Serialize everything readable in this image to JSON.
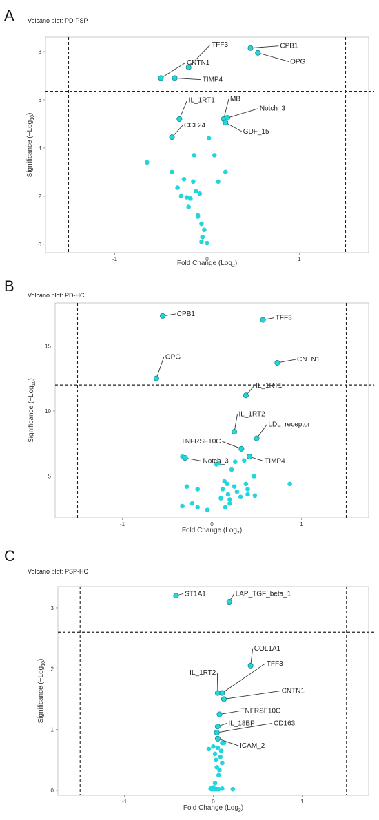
{
  "colors": {
    "point": "#22d6dc",
    "point_stroke": "#1a8f94",
    "threshold": "#222222",
    "leader": "#333333"
  },
  "chart_data": [
    {
      "panel": "A",
      "type": "scatter",
      "title": "Volcano plot: PD-PSP",
      "xlabel": "Fold Change (Log",
      "xlabel_sub": "2",
      "xlabel_suffix": ")",
      "ylabel": "Significance (−Log",
      "ylabel_sub": "10",
      "ylabel_suffix": ")",
      "xlim": [
        -1.75,
        1.75
      ],
      "ylim": [
        -0.35,
        8.6
      ],
      "xticks": [
        -1,
        0,
        1
      ],
      "xtick_labels": [
        "-1",
        "0",
        "1"
      ],
      "yticks": [
        0,
        2,
        4,
        6,
        8
      ],
      "ytick_labels": [
        "0",
        "2",
        "4",
        "6",
        "8"
      ],
      "vlines": [
        -1.5,
        1.5
      ],
      "hline": 6.35,
      "labeled_points": [
        {
          "label": "TFF3",
          "x": -0.2,
          "y": 7.35
        },
        {
          "label": "CNTN1",
          "x": -0.5,
          "y": 6.9
        },
        {
          "label": "TIMP4",
          "x": -0.35,
          "y": 6.9
        },
        {
          "label": "CPB1",
          "x": 0.47,
          "y": 8.15
        },
        {
          "label": "OPG",
          "x": 0.55,
          "y": 7.95
        },
        {
          "label": "IL_1RT1",
          "x": -0.3,
          "y": 5.2
        },
        {
          "label": "MB",
          "x": 0.18,
          "y": 5.2
        },
        {
          "label": "Notch_3",
          "x": 0.22,
          "y": 5.25
        },
        {
          "label": "GDF_15",
          "x": 0.2,
          "y": 5.05
        },
        {
          "label": "CCL24",
          "x": -0.38,
          "y": 4.45
        }
      ],
      "points": [
        {
          "x": -0.65,
          "y": 3.4
        },
        {
          "x": -0.38,
          "y": 3.0
        },
        {
          "x": -0.32,
          "y": 2.35
        },
        {
          "x": -0.25,
          "y": 2.7
        },
        {
          "x": -0.22,
          "y": 1.95
        },
        {
          "x": -0.18,
          "y": 1.9
        },
        {
          "x": -0.2,
          "y": 1.55
        },
        {
          "x": -0.15,
          "y": 2.6
        },
        {
          "x": -0.12,
          "y": 2.2
        },
        {
          "x": -0.1,
          "y": 1.15
        },
        {
          "x": -0.08,
          "y": 2.1
        },
        {
          "x": -0.06,
          "y": 0.85
        },
        {
          "x": -0.05,
          "y": 0.3
        },
        {
          "x": -0.03,
          "y": 0.6
        },
        {
          "x": 0.0,
          "y": 0.05
        },
        {
          "x": 0.02,
          "y": 4.4
        },
        {
          "x": -0.14,
          "y": 3.7
        },
        {
          "x": 0.08,
          "y": 3.7
        },
        {
          "x": 0.12,
          "y": 2.6
        },
        {
          "x": -0.1,
          "y": 1.2
        },
        {
          "x": -0.06,
          "y": 0.1
        },
        {
          "x": 0.2,
          "y": 3.0
        },
        {
          "x": -0.28,
          "y": 2.0
        }
      ],
      "label_text_pos": [
        {
          "x": 0.05,
          "y": 8.2
        },
        {
          "x": -0.22,
          "y": 7.45
        },
        {
          "x": -0.05,
          "y": 6.75
        },
        {
          "x": 0.79,
          "y": 8.15
        },
        {
          "x": 0.9,
          "y": 7.5
        },
        {
          "x": -0.2,
          "y": 5.9
        },
        {
          "x": 0.25,
          "y": 5.95
        },
        {
          "x": 0.57,
          "y": 5.55
        },
        {
          "x": 0.39,
          "y": 4.6
        },
        {
          "x": -0.25,
          "y": 4.85
        }
      ]
    },
    {
      "panel": "B",
      "type": "scatter",
      "title": "Volcano plot: PD-HC",
      "xlabel": "Fold Change (Log",
      "xlabel_sub": "2",
      "xlabel_suffix": ")",
      "ylabel": "Significance (−Log",
      "ylabel_sub": "10",
      "ylabel_suffix": ")",
      "xlim": [
        -1.75,
        1.75
      ],
      "ylim": [
        1.8,
        18.3
      ],
      "xticks": [
        -1,
        0,
        1
      ],
      "xtick_labels": [
        "-1",
        "0",
        "1"
      ],
      "yticks": [
        5,
        10,
        15
      ],
      "ytick_labels": [
        "5",
        "10",
        "15"
      ],
      "vlines": [
        -1.5,
        1.5
      ],
      "hline": 12.0,
      "labeled_points": [
        {
          "label": "CPB1",
          "x": -0.55,
          "y": 17.3
        },
        {
          "label": "TFF3",
          "x": 0.57,
          "y": 17.0
        },
        {
          "label": "CNTN1",
          "x": 0.73,
          "y": 13.7
        },
        {
          "label": "OPG",
          "x": -0.62,
          "y": 12.5
        },
        {
          "label": "IL_1RT1",
          "x": 0.38,
          "y": 11.2
        },
        {
          "label": "IL_1RT2",
          "x": 0.25,
          "y": 8.4
        },
        {
          "label": "LDL_receptor",
          "x": 0.5,
          "y": 7.9
        },
        {
          "label": "TNFRSF10C",
          "x": 0.33,
          "y": 7.1
        },
        {
          "label": "Notch_3",
          "x": -0.3,
          "y": 6.4
        },
        {
          "label": "TIMP4",
          "x": 0.42,
          "y": 6.5
        }
      ],
      "points": [
        {
          "x": -0.33,
          "y": 6.5
        },
        {
          "x": -0.28,
          "y": 4.2
        },
        {
          "x": -0.16,
          "y": 4.0
        },
        {
          "x": -0.33,
          "y": 2.7
        },
        {
          "x": -0.16,
          "y": 2.6
        },
        {
          "x": -0.05,
          "y": 2.4
        },
        {
          "x": -0.22,
          "y": 2.9
        },
        {
          "x": 0.08,
          "y": 6.0
        },
        {
          "x": 0.12,
          "y": 4.0
        },
        {
          "x": 0.17,
          "y": 4.4
        },
        {
          "x": 0.18,
          "y": 3.6
        },
        {
          "x": 0.2,
          "y": 3.2
        },
        {
          "x": 0.22,
          "y": 5.5
        },
        {
          "x": 0.25,
          "y": 4.2
        },
        {
          "x": 0.28,
          "y": 3.8
        },
        {
          "x": 0.32,
          "y": 3.4
        },
        {
          "x": 0.36,
          "y": 6.2
        },
        {
          "x": 0.4,
          "y": 4.0
        },
        {
          "x": 0.4,
          "y": 3.6
        },
        {
          "x": 0.47,
          "y": 5.0
        },
        {
          "x": 0.48,
          "y": 3.5
        },
        {
          "x": 0.2,
          "y": 2.9
        },
        {
          "x": 0.15,
          "y": 2.6
        },
        {
          "x": 0.26,
          "y": 6.1
        },
        {
          "x": 0.1,
          "y": 3.3
        },
        {
          "x": 0.87,
          "y": 4.4
        },
        {
          "x": 0.38,
          "y": 4.4
        },
        {
          "x": 0.05,
          "y": 5.9
        },
        {
          "x": 0.14,
          "y": 4.6
        }
      ],
      "label_text_pos": [
        {
          "x": -0.39,
          "y": 17.3
        },
        {
          "x": 0.71,
          "y": 17.0
        },
        {
          "x": 0.95,
          "y": 13.8
        },
        {
          "x": -0.52,
          "y": 14.0
        },
        {
          "x": 0.49,
          "y": 11.8
        },
        {
          "x": 0.3,
          "y": 9.6
        },
        {
          "x": 0.63,
          "y": 8.8
        },
        {
          "x": 0.1,
          "y": 7.5
        },
        {
          "x": -0.1,
          "y": 6.0
        },
        {
          "x": 0.59,
          "y": 6.0
        }
      ]
    },
    {
      "panel": "C",
      "type": "scatter",
      "title": "Volcano plot: PSP-HC",
      "xlabel": "Fold Change (Log",
      "xlabel_sub": "2",
      "xlabel_suffix": ")",
      "ylabel": "Significance (−Log",
      "ylabel_sub": "10",
      "ylabel_suffix": ")",
      "xlim": [
        -1.75,
        1.75
      ],
      "ylim": [
        -0.08,
        3.35
      ],
      "xticks": [
        -1,
        0,
        1
      ],
      "xtick_labels": [
        "-1",
        "0",
        "1"
      ],
      "yticks": [
        0,
        1,
        2,
        3
      ],
      "ytick_labels": [
        "0",
        "1",
        "2",
        "3"
      ],
      "vlines": [
        -1.5,
        1.5
      ],
      "hline": 2.6,
      "labeled_points": [
        {
          "label": "ST1A1",
          "x": -0.42,
          "y": 3.2
        },
        {
          "label": "LAP_TGF_beta_1",
          "x": 0.18,
          "y": 3.1
        },
        {
          "label": "COL1A1",
          "x": 0.42,
          "y": 2.05
        },
        {
          "label": "IL_1RT2",
          "x": 0.05,
          "y": 1.6
        },
        {
          "label": "TFF3",
          "x": 0.1,
          "y": 1.6
        },
        {
          "label": "CNTN1",
          "x": 0.12,
          "y": 1.5
        },
        {
          "label": "TNFRSF10C",
          "x": 0.07,
          "y": 1.25
        },
        {
          "label": "IL_18BP",
          "x": 0.05,
          "y": 1.05
        },
        {
          "label": "CD163",
          "x": 0.04,
          "y": 0.95
        },
        {
          "label": "ICAM_2",
          "x": 0.05,
          "y": 0.85
        }
      ],
      "points": [
        {
          "x": -0.05,
          "y": 0.68
        },
        {
          "x": 0.0,
          "y": 0.72
        },
        {
          "x": 0.02,
          "y": 0.6
        },
        {
          "x": 0.03,
          "y": 0.5
        },
        {
          "x": 0.04,
          "y": 0.38
        },
        {
          "x": 0.05,
          "y": 0.7
        },
        {
          "x": 0.06,
          "y": 0.25
        },
        {
          "x": 0.08,
          "y": 0.55
        },
        {
          "x": 0.1,
          "y": 0.45
        },
        {
          "x": 0.1,
          "y": 0.78
        },
        {
          "x": 0.12,
          "y": 0.78
        },
        {
          "x": 0.02,
          "y": 0.12
        },
        {
          "x": -0.03,
          "y": 0.03
        },
        {
          "x": -0.02,
          "y": 0.02
        },
        {
          "x": 0.0,
          "y": 0.02
        },
        {
          "x": 0.02,
          "y": 0.02
        },
        {
          "x": 0.04,
          "y": 0.02
        },
        {
          "x": 0.06,
          "y": 0.02
        },
        {
          "x": 0.1,
          "y": 0.03
        },
        {
          "x": 0.22,
          "y": 0.02
        },
        {
          "x": 0.07,
          "y": 0.33
        },
        {
          "x": 0.09,
          "y": 0.65
        },
        {
          "x": 0.0,
          "y": 0.05
        }
      ],
      "label_text_pos": [
        {
          "x": -0.32,
          "y": 3.2
        },
        {
          "x": 0.25,
          "y": 3.2
        },
        {
          "x": 0.46,
          "y": 2.3
        },
        {
          "x": 0.03,
          "y": 1.9
        },
        {
          "x": 0.6,
          "y": 2.05
        },
        {
          "x": 0.77,
          "y": 1.6
        },
        {
          "x": 0.31,
          "y": 1.27
        },
        {
          "x": 0.17,
          "y": 1.07
        },
        {
          "x": 0.68,
          "y": 1.07
        },
        {
          "x": 0.3,
          "y": 0.7
        }
      ]
    }
  ]
}
